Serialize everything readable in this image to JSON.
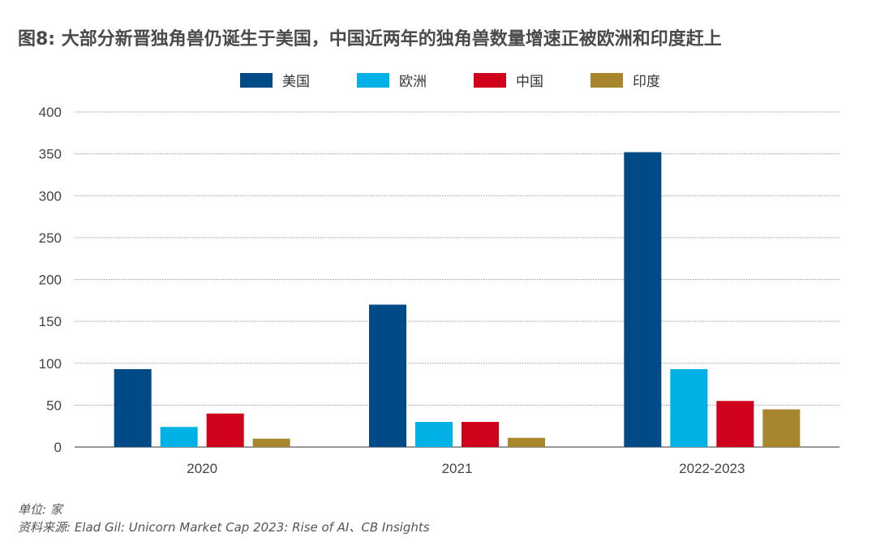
{
  "title": "图8: 大部分新晋独角兽仍诞生于美国，中国近两年的独角兽数量增速正被欧洲和印度赶上",
  "chart_data": {
    "type": "bar",
    "title": "图8: 大部分新晋独角兽仍诞生于美国，中国近两年的独角兽数量增速正被欧洲和印度赶上",
    "categories": [
      "2020",
      "2021",
      "2022-2023"
    ],
    "series": [
      {
        "name": "美国",
        "color": "#004a87",
        "values": [
          93,
          170,
          352
        ]
      },
      {
        "name": "欧洲",
        "color": "#00b1e6",
        "values": [
          24,
          30,
          93
        ]
      },
      {
        "name": "中国",
        "color": "#d0021b",
        "values": [
          40,
          30,
          55
        ]
      },
      {
        "name": "印度",
        "color": "#a8862d",
        "values": [
          10,
          11,
          45
        ]
      }
    ],
    "ylim": [
      0,
      400
    ],
    "yticks": [
      "0",
      "50",
      "100",
      "150",
      "200",
      "250",
      "300",
      "350",
      "400"
    ],
    "grid": true,
    "legend_position": "top-center"
  },
  "footer": {
    "unit": "单位: 家",
    "source": "资料来源: Elad Gil: Unicorn Market Cap 2023: Rise of AI、CB Insights"
  }
}
